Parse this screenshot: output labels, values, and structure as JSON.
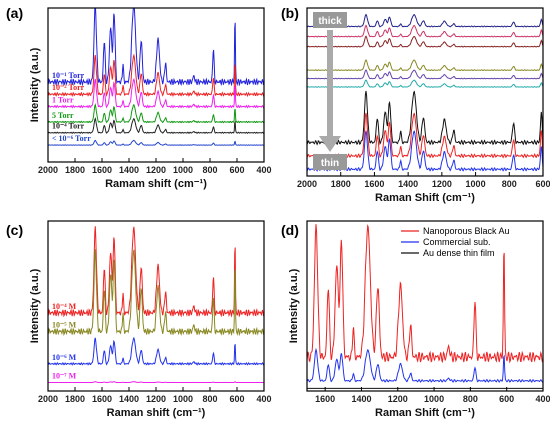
{
  "chart_data": [
    {
      "panel": "(a)",
      "type": "line",
      "xlabel": "Ramam shift (cm⁻¹)",
      "ylabel": "Intensity (a.u.)",
      "xlim": [
        2000,
        400
      ],
      "xticks": [
        2000,
        1800,
        1600,
        1400,
        1200,
        1000,
        800,
        600,
        400
      ],
      "peaks": [
        1650,
        1583,
        1536,
        1510,
        1445,
        1365,
        1310,
        1185,
        1130,
        920,
        775,
        615
      ],
      "series": [
        {
          "name": "10⁻¹ Torr",
          "color": "#2222dd",
          "baseline": 0.52,
          "scale": 1.0
        },
        {
          "name": "10⁻² Torr",
          "color": "#ee2222",
          "baseline": 0.44,
          "scale": 0.5
        },
        {
          "name": "1 Torr",
          "color": "#ee22ee",
          "baseline": 0.36,
          "scale": 0.35
        },
        {
          "name": "5 Torr",
          "color": "#119911",
          "baseline": 0.26,
          "scale": 0.22
        },
        {
          "name": "10⁻⁴ Torr",
          "color": "#222222",
          "baseline": 0.19,
          "scale": 0.18
        },
        {
          "name": "< 10⁻⁶ Torr",
          "color": "#2244cc",
          "baseline": 0.11,
          "scale": 0.06
        }
      ]
    },
    {
      "panel": "(b)",
      "type": "line",
      "xlabel": "Raman Shift (cm⁻¹)",
      "ylabel": "",
      "xlim": [
        2000,
        600
      ],
      "xticks": [
        2000,
        1800,
        1600,
        1400,
        1200,
        1000,
        800,
        600
      ],
      "peaks": [
        1650,
        1583,
        1536,
        1510,
        1445,
        1365,
        1310,
        1185,
        1130,
        775,
        610
      ],
      "annotations": [
        "thick",
        "thin"
      ],
      "series": [
        {
          "color": "#222288",
          "baseline": 0.89,
          "scale": 0.14
        },
        {
          "color": "#cc3366",
          "baseline": 0.83,
          "scale": 0.13
        },
        {
          "color": "#882222",
          "baseline": 0.77,
          "scale": 0.12
        },
        {
          "color": "#888822",
          "baseline": 0.63,
          "scale": 0.12
        },
        {
          "color": "#6644aa",
          "baseline": 0.58,
          "scale": 0.1
        },
        {
          "color": "#22aaaa",
          "baseline": 0.53,
          "scale": 0.08
        },
        {
          "color": "#111111",
          "baseline": 0.2,
          "scale": 0.6
        },
        {
          "color": "#ee2222",
          "baseline": 0.12,
          "scale": 0.5
        },
        {
          "color": "#2233ee",
          "baseline": 0.04,
          "scale": 0.45
        }
      ]
    },
    {
      "panel": "(c)",
      "type": "line",
      "xlabel": "Raman shift (cm⁻¹)",
      "ylabel": "Intensity (a.u.)",
      "xlim": [
        2000,
        400
      ],
      "xticks": [
        2000,
        1800,
        1600,
        1400,
        1200,
        1000,
        800,
        600,
        400
      ],
      "peaks": [
        1650,
        1583,
        1536,
        1510,
        1445,
        1365,
        1310,
        1185,
        1130,
        920,
        775,
        615
      ],
      "series": [
        {
          "name": "10⁻⁴ M",
          "color": "#ee2222",
          "baseline": 0.46,
          "scale": 1.0
        },
        {
          "name": "10⁻⁵ M",
          "color": "#888822",
          "baseline": 0.35,
          "scale": 0.95
        },
        {
          "name": "10⁻⁶ M",
          "color": "#2233ee",
          "baseline": 0.16,
          "scale": 0.3
        },
        {
          "name": "10⁻⁷ M",
          "color": "#ee22ee",
          "baseline": 0.05,
          "scale": 0.01
        }
      ]
    },
    {
      "panel": "(d)",
      "type": "line",
      "xlabel": "Raman Shift (cm⁻¹)",
      "ylabel": "Intensity (a.u.)",
      "xlim": [
        1700,
        400
      ],
      "xticks": [
        1600,
        1400,
        1200,
        1000,
        800,
        600,
        400
      ],
      "peaks": [
        1650,
        1583,
        1536,
        1510,
        1445,
        1365,
        1310,
        1185,
        1130,
        920,
        775,
        615
      ],
      "legend": "top-right",
      "series": [
        {
          "name": "Nanoporous Black Au",
          "color": "#ee2222",
          "baseline": 0.2,
          "scale": 0.85
        },
        {
          "name": "Commercial sub.",
          "color": "#2233ee",
          "baseline": 0.06,
          "scale": 0.2
        },
        {
          "name": "Au dense thin film",
          "color": "#111111",
          "baseline": 0.015,
          "scale": 0.0
        }
      ]
    }
  ]
}
